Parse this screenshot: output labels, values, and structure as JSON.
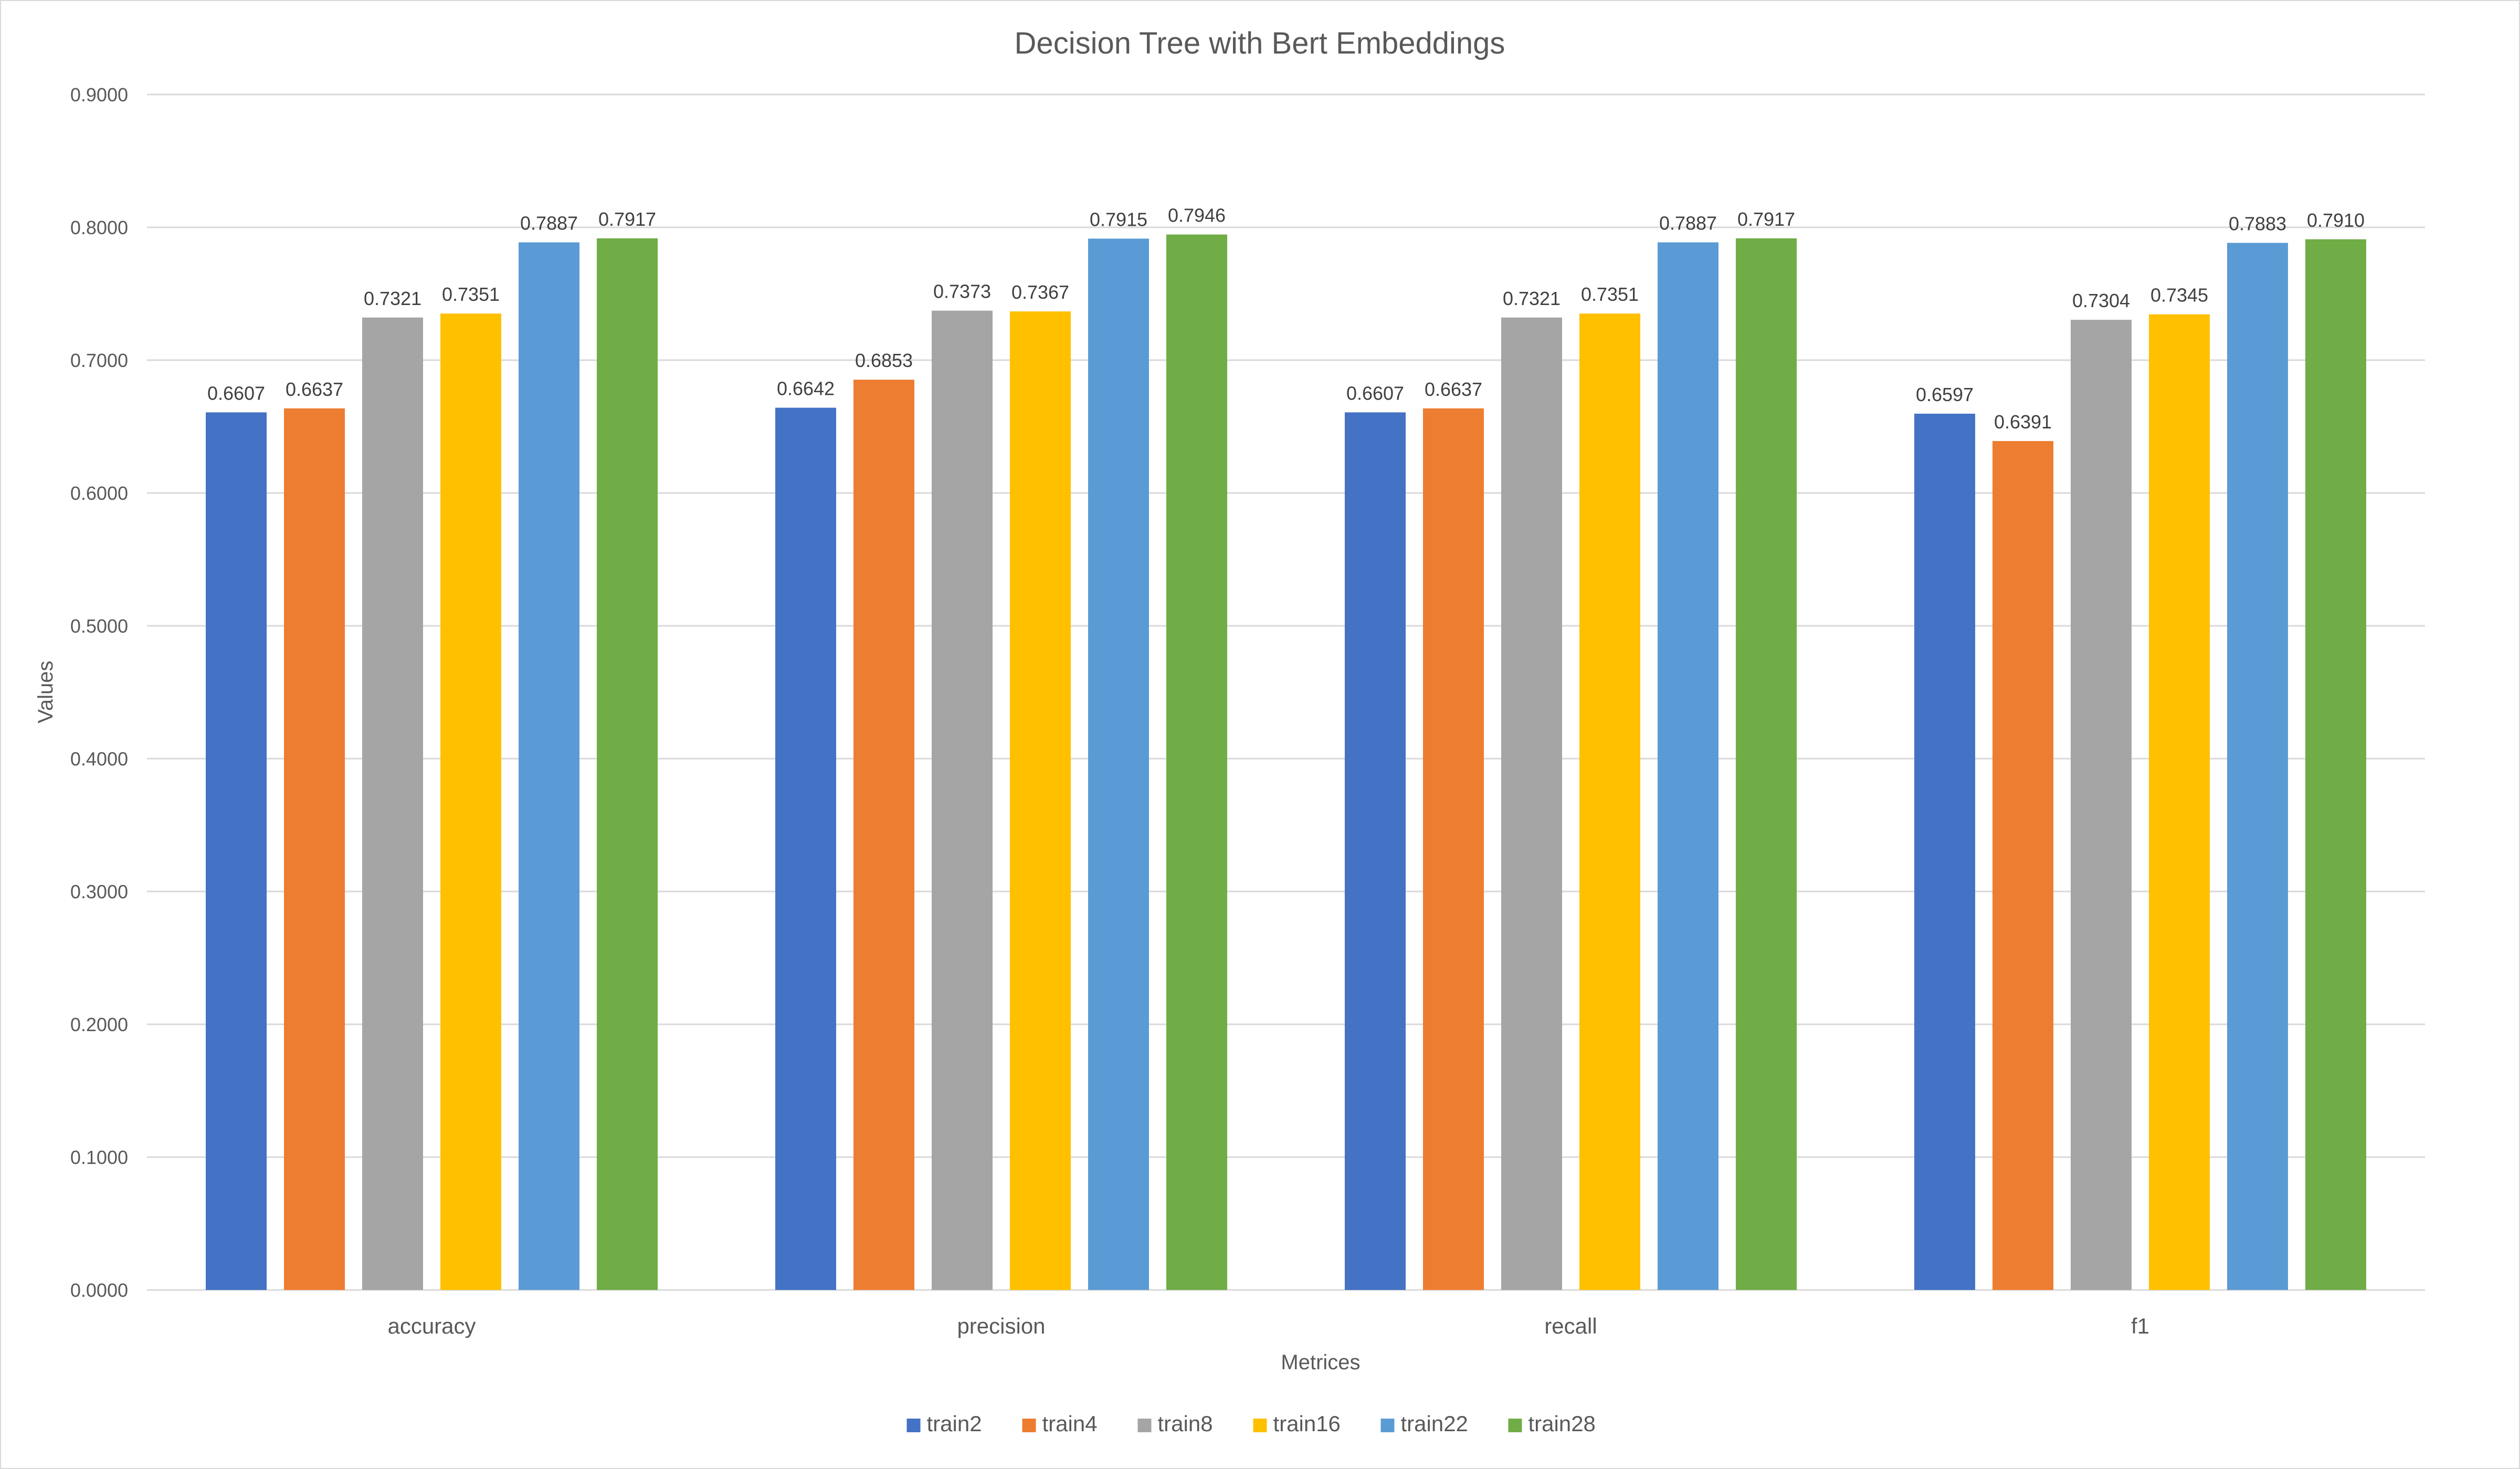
{
  "chart_data": {
    "type": "bar",
    "title": "Decision Tree with Bert Embeddings",
    "xlabel": "Metrices",
    "ylabel": "Values",
    "categories": [
      "accuracy",
      "precision",
      "recall",
      "f1"
    ],
    "ylim": [
      0,
      0.9
    ],
    "ytick_step": 0.1,
    "ytick_decimals": 4,
    "grid": true,
    "legend_position": "bottom",
    "series": [
      {
        "name": "train2",
        "color": "#4472C4",
        "values": [
          0.6607,
          0.6642,
          0.6607,
          0.6597
        ]
      },
      {
        "name": "train4",
        "color": "#ED7D31",
        "values": [
          0.6637,
          0.6853,
          0.6637,
          0.6391
        ]
      },
      {
        "name": "train8",
        "color": "#A5A5A5",
        "values": [
          0.7321,
          0.7373,
          0.7321,
          0.7304
        ]
      },
      {
        "name": "train16",
        "color": "#FFC000",
        "values": [
          0.7351,
          0.7367,
          0.7351,
          0.7345
        ]
      },
      {
        "name": "train22",
        "color": "#5B9BD5",
        "values": [
          0.7887,
          0.7915,
          0.7887,
          0.7883
        ]
      },
      {
        "name": "train28",
        "color": "#70AD47",
        "values": [
          0.7917,
          0.7946,
          0.7917,
          0.791
        ]
      }
    ]
  }
}
